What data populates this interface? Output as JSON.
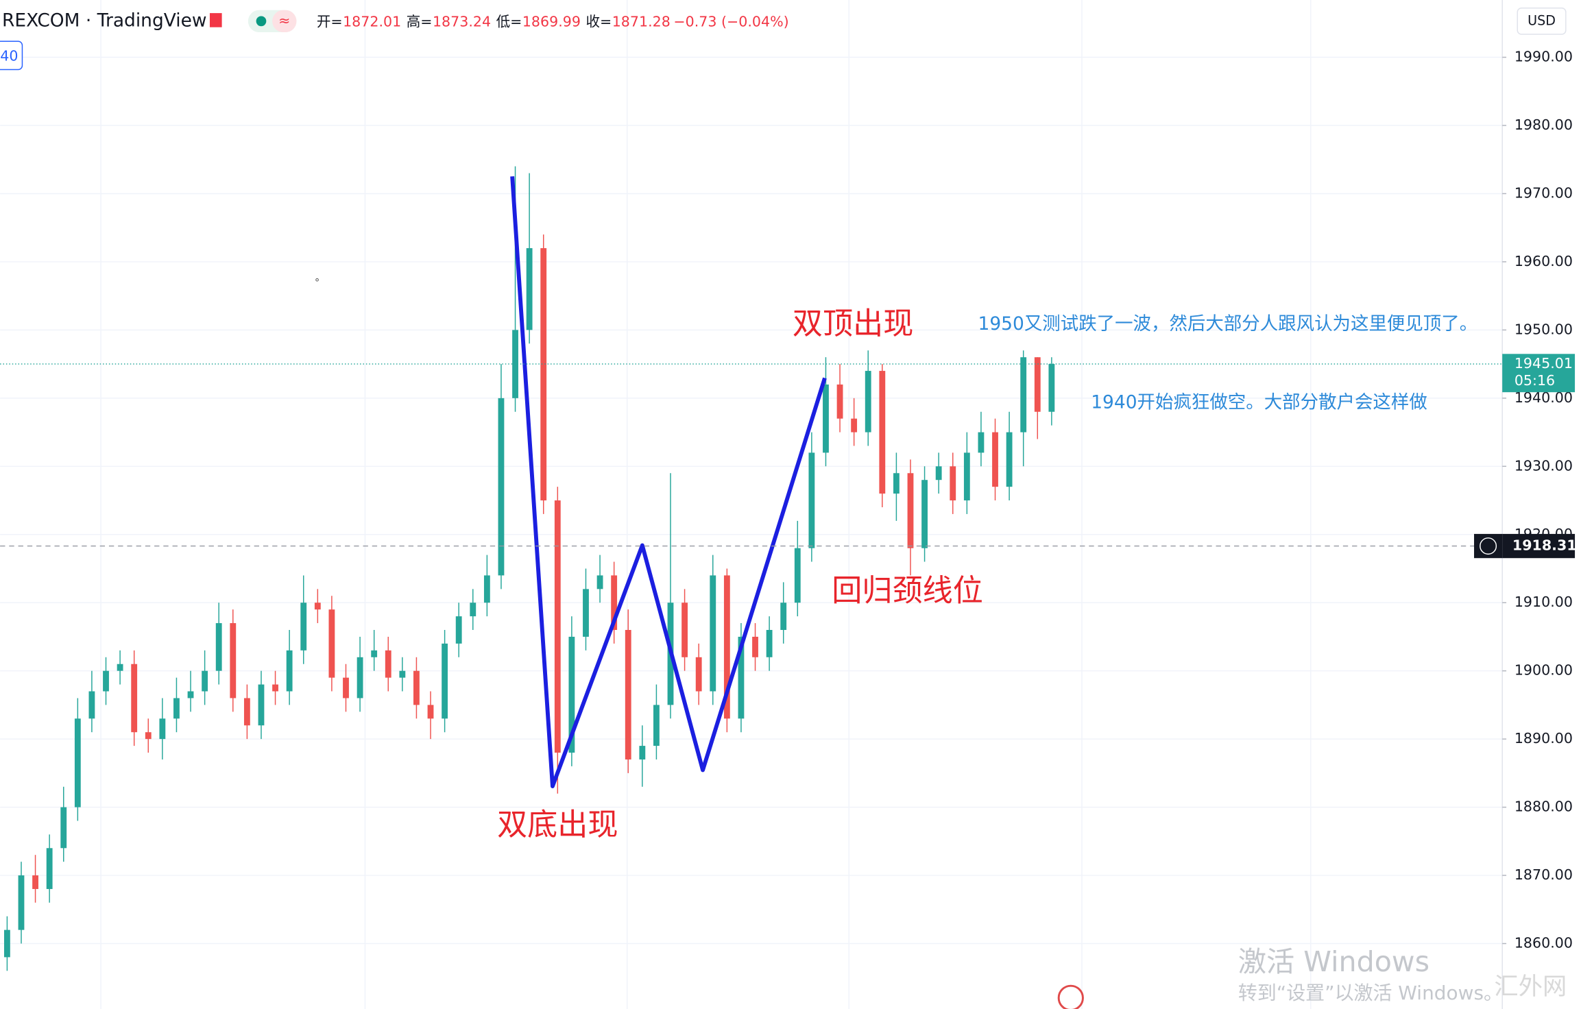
{
  "chart_data": {
    "type": "candlestick",
    "symbol": "REXCOM · TradingView",
    "readout": [
      {
        "key": "开=",
        "value": "1872.01"
      },
      {
        "key": "高=",
        "value": "1873.24"
      },
      {
        "key": "低=",
        "value": "1869.99"
      },
      {
        "key": "收=",
        "value": "1871.28"
      }
    ],
    "change": "−0.73 (−0.04%)",
    "interval_badge": "40",
    "currency": "USD",
    "last_price": {
      "value": 1945.01,
      "label": "1945.01",
      "countdown": "05:16"
    },
    "crosshair_price": {
      "value": 1918.31,
      "label": "1918.31"
    },
    "up_color": "#26a69a",
    "down_color": "#ef5350",
    "ylim": [
      1850.4,
      1998.4
    ],
    "yticks": [
      {
        "value": 1860,
        "label": "1860.00"
      },
      {
        "value": 1870,
        "label": "1870.00"
      },
      {
        "value": 1880,
        "label": "1880.00"
      },
      {
        "value": 1890,
        "label": "1890.00"
      },
      {
        "value": 1900,
        "label": "1900.00"
      },
      {
        "value": 1910,
        "label": "1910.00"
      },
      {
        "value": 1920,
        "label": "1920.00"
      },
      {
        "value": 1930,
        "label": "1930.00"
      },
      {
        "value": 1940,
        "label": "1940.00"
      },
      {
        "value": 1950,
        "label": "1950.00"
      },
      {
        "value": 1960,
        "label": "1960.00"
      },
      {
        "value": 1970,
        "label": "1970.00"
      },
      {
        "value": 1980,
        "label": "1980.00"
      },
      {
        "value": 1990,
        "label": "1990.00"
      }
    ],
    "grid": true,
    "open": [
      1858,
      1862,
      1870,
      1868,
      1874,
      1880,
      1893,
      1897,
      1900,
      1901,
      1891,
      1890,
      1893,
      1896,
      1897,
      1900,
      1907,
      1896,
      1892,
      1898,
      1897,
      1903,
      1910,
      1909,
      1899,
      1896,
      1902,
      1903,
      1899,
      1900,
      1895,
      1893,
      1904,
      1908,
      1910,
      1914,
      1940,
      1950,
      1962,
      1925,
      1888,
      1905,
      1912,
      1914,
      1906,
      1887,
      1889,
      1895,
      1910,
      1902,
      1897,
      1914,
      1893,
      1905,
      1902,
      1906,
      1910,
      1918,
      1932,
      1942,
      1937,
      1935,
      1944,
      1926,
      1929,
      1918,
      1928,
      1930,
      1925,
      1932,
      1935,
      1927,
      1935,
      1946,
      1938
    ],
    "close": [
      1862,
      1870,
      1868,
      1874,
      1880,
      1893,
      1897,
      1900,
      1901,
      1891,
      1890,
      1893,
      1896,
      1897,
      1900,
      1907,
      1896,
      1892,
      1898,
      1897,
      1903,
      1910,
      1909,
      1899,
      1896,
      1902,
      1903,
      1899,
      1900,
      1895,
      1893,
      1904,
      1908,
      1910,
      1914,
      1940,
      1950,
      1962,
      1925,
      1888,
      1905,
      1912,
      1914,
      1906,
      1887,
      1889,
      1895,
      1910,
      1902,
      1897,
      1914,
      1893,
      1905,
      1902,
      1906,
      1910,
      1918,
      1932,
      1942,
      1937,
      1935,
      1944,
      1926,
      1929,
      1918,
      1928,
      1930,
      1925,
      1932,
      1935,
      1927,
      1935,
      1946,
      1938,
      1945.01
    ],
    "high": [
      1864,
      1872,
      1873,
      1876,
      1883,
      1896,
      1900,
      1902,
      1903,
      1903,
      1893,
      1896,
      1899,
      1900,
      1903,
      1910,
      1909,
      1898,
      1900,
      1900,
      1906,
      1914,
      1912,
      1911,
      1901,
      1905,
      1906,
      1905,
      1902,
      1902,
      1897,
      1906,
      1910,
      1912,
      1917,
      1945,
      1974,
      1973,
      1964,
      1927,
      1908,
      1915,
      1917,
      1916,
      1909,
      1892,
      1898,
      1929,
      1912,
      1904,
      1917,
      1915,
      1907,
      1907,
      1908,
      1913,
      1922,
      1935,
      1946,
      1945,
      1940,
      1947,
      1945,
      1932,
      1931,
      1930,
      1932,
      1932,
      1935,
      1938,
      1937,
      1938,
      1947,
      1946,
      1946
    ],
    "low": [
      1856,
      1860,
      1866,
      1866,
      1872,
      1878,
      1891,
      1895,
      1898,
      1889,
      1888,
      1887,
      1891,
      1894,
      1895,
      1898,
      1894,
      1890,
      1890,
      1895,
      1895,
      1901,
      1907,
      1897,
      1894,
      1894,
      1900,
      1897,
      1897,
      1893,
      1890,
      1891,
      1902,
      1906,
      1908,
      1912,
      1938,
      1948,
      1923,
      1882,
      1886,
      1903,
      1910,
      1904,
      1885,
      1883,
      1887,
      1893,
      1900,
      1895,
      1895,
      1891,
      1891,
      1900,
      1900,
      1904,
      1908,
      1916,
      1930,
      1935,
      1933,
      1933,
      1924,
      1922,
      1914,
      1916,
      1926,
      1923,
      1923,
      1930,
      1925,
      1925,
      1930,
      1934,
      1936
    ],
    "annotations": [
      "双顶出现",
      "双底出现",
      "回归颈线位",
      "1950又测试跌了一波，然后大部分人跟风认为这里便见顶了。",
      "1940开始疯狂做空。大部分散户会这样做"
    ],
    "watermark": [
      "激活 Windows",
      "转到“设置”以激活 Windows。",
      "汇外网"
    ]
  }
}
